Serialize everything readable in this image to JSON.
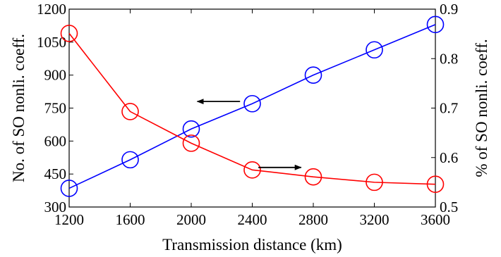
{
  "chart_data": {
    "type": "line",
    "xlabel": "Transmission distance (km)",
    "ylabel_left": "No. of SO nonli. coeff.",
    "ylabel_right": "% of SO nonli. coeff.",
    "x": [
      1200,
      1600,
      2000,
      2400,
      2800,
      3200,
      3600
    ],
    "xlim": [
      1200,
      3600
    ],
    "x_ticks": [
      "1200",
      "1600",
      "2000",
      "2400",
      "2800",
      "3200",
      "3600"
    ],
    "ylim_left": [
      300,
      1200
    ],
    "y_ticks_left": [
      "300",
      "450",
      "600",
      "750",
      "900",
      "1050",
      "1200"
    ],
    "ylim_right": [
      0.5,
      0.9
    ],
    "y_ticks_right": [
      "0.5",
      "0.6",
      "0.7",
      "0.8",
      "0.9"
    ],
    "grid": false,
    "series": [
      {
        "axis": "left",
        "color": "#0000ff",
        "marker": "circle",
        "values": [
          385,
          515,
          655,
          770,
          900,
          1015,
          1130
        ]
      },
      {
        "axis": "right",
        "color": "#ff0000",
        "marker": "circle",
        "values": [
          0.851,
          0.693,
          0.629,
          0.575,
          0.561,
          0.55,
          0.546
        ]
      }
    ],
    "annotations": [
      {
        "type": "arrow",
        "direction": "left",
        "points_to": "left axis",
        "x_from": 2320,
        "x_to": 2040,
        "y_left": 780
      },
      {
        "type": "arrow",
        "direction": "right",
        "points_to": "right axis",
        "x_from": 2440,
        "x_to": 2720,
        "y_left": 480
      }
    ]
  }
}
